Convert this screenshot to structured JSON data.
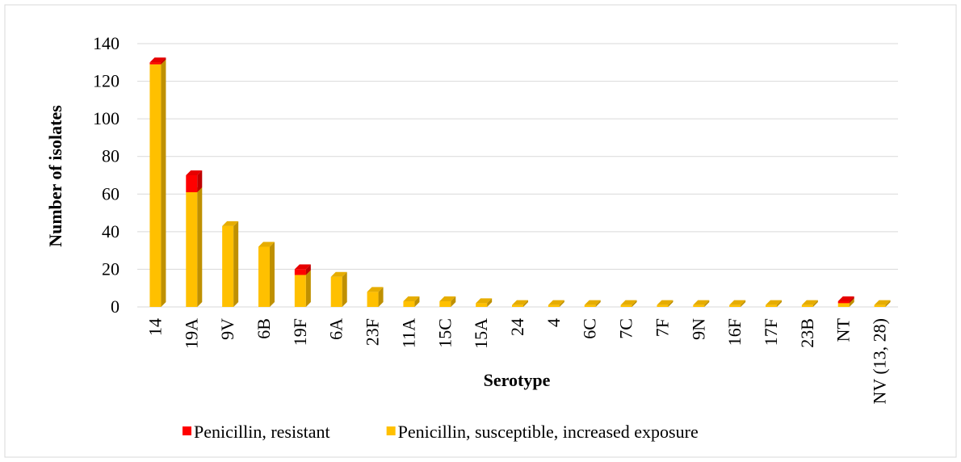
{
  "chart_data": {
    "type": "bar",
    "stacked": true,
    "x_label": "Serotype",
    "y_label": "Number of isolates",
    "categories": [
      "14",
      "19A",
      "9V",
      "6B",
      "19F",
      "6A",
      "23F",
      "11A",
      "15C",
      "15A",
      "24",
      "4",
      "6C",
      "7C",
      "7F",
      "9N",
      "16F",
      "17F",
      "23B",
      "NT",
      "NV (13, 28)"
    ],
    "series": [
      {
        "name": "Penicillin, susceptible, increased exposure",
        "color": "#ffc000",
        "values": [
          129,
          61,
          43,
          32,
          17,
          16,
          8,
          3,
          3,
          2,
          1,
          1,
          1,
          1,
          1,
          1,
          1,
          1,
          1,
          2,
          1
        ]
      },
      {
        "name": "Penicillin, resistant",
        "color": "#ff0000",
        "values": [
          1,
          9,
          0,
          0,
          3,
          0,
          0,
          0,
          0,
          0,
          0,
          0,
          0,
          0,
          0,
          0,
          0,
          0,
          0,
          1,
          0
        ]
      }
    ],
    "legend_order": [
      1,
      0
    ],
    "ylim": [
      0,
      140
    ],
    "yticks": [
      0,
      20,
      40,
      60,
      80,
      100,
      120,
      140
    ],
    "grid": true,
    "legend": "bottom"
  }
}
